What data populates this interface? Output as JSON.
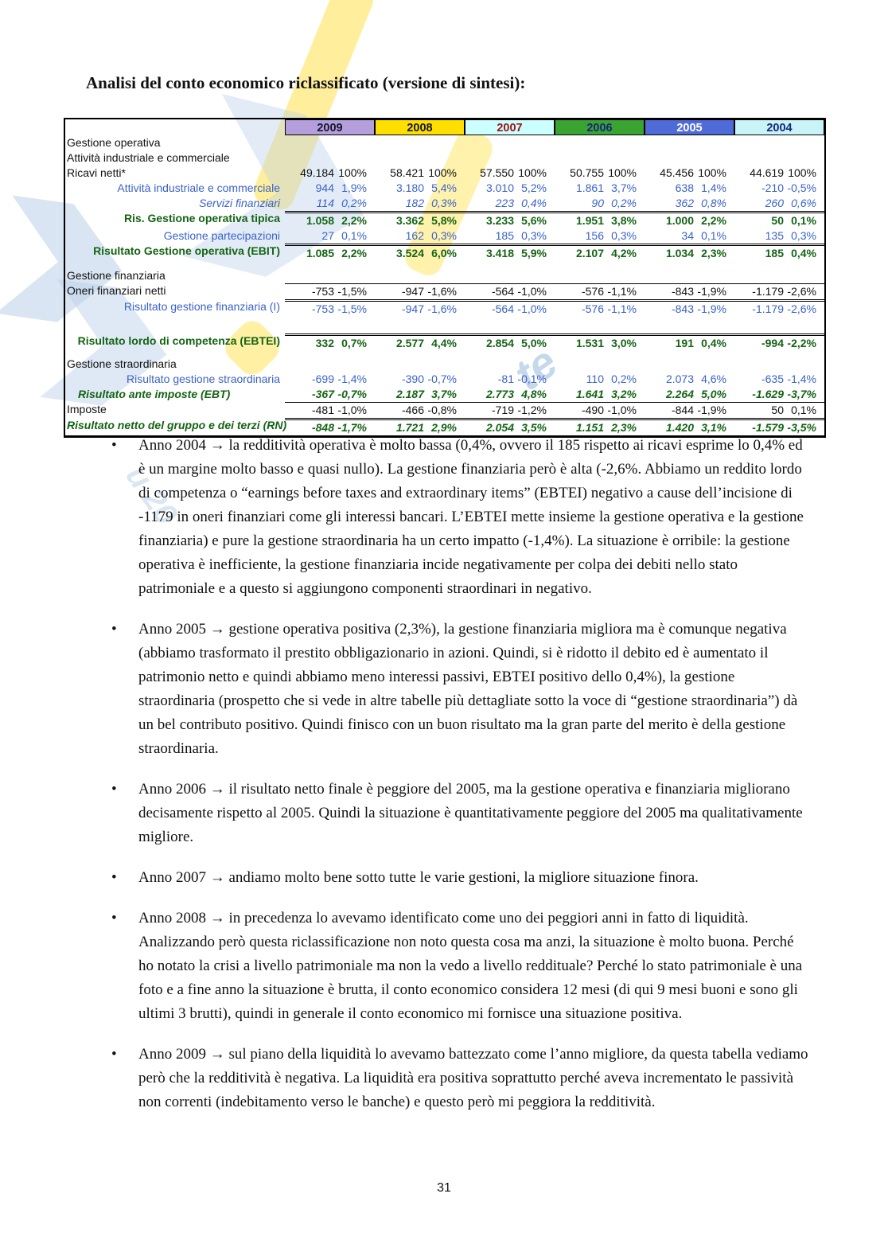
{
  "page": {
    "title": "Analisi del conto economico riclassificato (versione di sintesi):",
    "page_number": "31",
    "bullet_glyph": "•"
  },
  "watermark": {
    "blue": "#b9cfe8",
    "yellow": "#ffe24a",
    "fragments": [
      "te",
      "u 20"
    ]
  },
  "table": {
    "years": [
      {
        "label": "2009",
        "bg": "#b49fdc",
        "fg": "#15152e"
      },
      {
        "label": "2008",
        "bg": "#ffdf00",
        "fg": "#15152e"
      },
      {
        "label": "2007",
        "bg": "#ccffff",
        "fg": "#a01313"
      },
      {
        "label": "2006",
        "bg": "#3aa432",
        "fg": "#16247e"
      },
      {
        "label": "2005",
        "bg": "#4f6bd8",
        "fg": "#ffffff"
      },
      {
        "label": "2004",
        "bg": "#c8f4f8",
        "fg": "#16247e"
      }
    ],
    "rows": [
      {
        "label": "Gestione operativa",
        "style": "section",
        "align": "left",
        "rule": "none",
        "values": []
      },
      {
        "label": "Attività industriale e commerciale",
        "style": "section2",
        "align": "left",
        "rule": "none",
        "values": []
      },
      {
        "label": "Ricavi netti*",
        "style": "plain",
        "align": "left",
        "rule": "none",
        "values": [
          [
            "49.184",
            "100%"
          ],
          [
            "58.421",
            "100%"
          ],
          [
            "57.550",
            "100%"
          ],
          [
            "50.755",
            "100%"
          ],
          [
            "45.456",
            "100%"
          ],
          [
            "44.619",
            "100%"
          ]
        ]
      },
      {
        "label": "Attività industriale e commerciale",
        "style": "blue",
        "align": "right",
        "rule": "none",
        "values": [
          [
            "944",
            "1,9%"
          ],
          [
            "3.180",
            "5,4%"
          ],
          [
            "3.010",
            "5,2%"
          ],
          [
            "1.861",
            "3,7%"
          ],
          [
            "638",
            "1,4%"
          ],
          [
            "-210",
            "-0,5%"
          ]
        ]
      },
      {
        "label": "Servizi finanziari",
        "style": "blue-italic",
        "align": "right",
        "rule": "none",
        "values": [
          [
            "114",
            "0,2%"
          ],
          [
            "182",
            "0,3%"
          ],
          [
            "223",
            "0,4%"
          ],
          [
            "90",
            "0,2%"
          ],
          [
            "362",
            "0,8%"
          ],
          [
            "260",
            "0,6%"
          ]
        ]
      },
      {
        "label": "Ris. Gestione operativa tipica",
        "style": "green",
        "align": "right",
        "rule": "double",
        "values": [
          [
            "1.058",
            "2,2%"
          ],
          [
            "3.362",
            "5,8%"
          ],
          [
            "3.233",
            "5,6%"
          ],
          [
            "1.951",
            "3,8%"
          ],
          [
            "1.000",
            "2,2%"
          ],
          [
            "50",
            "0,1%"
          ]
        ]
      },
      {
        "label": "Gestione partecipazioni",
        "style": "blue",
        "align": "right",
        "rule": "none",
        "values": [
          [
            "27",
            "0,1%"
          ],
          [
            "162",
            "0,3%"
          ],
          [
            "185",
            "0,3%"
          ],
          [
            "156",
            "0,3%"
          ],
          [
            "34",
            "0,1%"
          ],
          [
            "135",
            "0,3%"
          ]
        ]
      },
      {
        "label": "Risultato Gestione operativa (EBIT)",
        "style": "green",
        "align": "right",
        "rule": "double",
        "values": [
          [
            "1.085",
            "2,2%"
          ],
          [
            "3.524",
            "6,0%"
          ],
          [
            "3.418",
            "5,9%"
          ],
          [
            "2.107",
            "4,2%"
          ],
          [
            "1.034",
            "2,3%"
          ],
          [
            "185",
            "0,4%"
          ]
        ]
      },
      {
        "style": "spacer"
      },
      {
        "label": "Gestione finanziaria",
        "style": "section",
        "align": "left",
        "rule": "none",
        "values": []
      },
      {
        "label": "Oneri finanziari netti",
        "style": "plain",
        "align": "left",
        "rule": "single",
        "values": [
          [
            "-753",
            "-1,5%"
          ],
          [
            "-947",
            "-1,6%"
          ],
          [
            "-564",
            "-1,0%"
          ],
          [
            "-576",
            "-1,1%"
          ],
          [
            "-843",
            "-1,9%"
          ],
          [
            "-1.179",
            "-2,6%"
          ]
        ]
      },
      {
        "label": "Risultato gestione finanziaria (I)",
        "style": "blue",
        "align": "right",
        "rule": "double",
        "values": [
          [
            "-753",
            "-1,5%"
          ],
          [
            "-947",
            "-1,6%"
          ],
          [
            "-564",
            "-1,0%"
          ],
          [
            "-576",
            "-1,1%"
          ],
          [
            "-843",
            "-1,9%"
          ],
          [
            "-1.179",
            "-2,6%"
          ]
        ]
      },
      {
        "style": "spacer-lg"
      },
      {
        "label": "Risultato lordo di competenza (EBTEI)",
        "style": "green",
        "align": "right",
        "rule": "double",
        "values": [
          [
            "332",
            "0,7%"
          ],
          [
            "2.577",
            "4,4%"
          ],
          [
            "2.854",
            "5,0%"
          ],
          [
            "1.531",
            "3,0%"
          ],
          [
            "191",
            "0,4%"
          ],
          [
            "-994",
            "-2,2%"
          ]
        ]
      },
      {
        "style": "spacer-sm"
      },
      {
        "label": "Gestione straordinaria",
        "style": "section",
        "align": "left",
        "rule": "none",
        "values": []
      },
      {
        "label": "Risultato gestione straordinaria",
        "style": "blue",
        "align": "right",
        "rule": "none",
        "values": [
          [
            "-699",
            "-1,4%"
          ],
          [
            "-390",
            "-0,7%"
          ],
          [
            "-81",
            "-0,1%"
          ],
          [
            "110",
            "0,2%"
          ],
          [
            "2.073",
            "4,6%"
          ],
          [
            "-635",
            "-1,4%"
          ]
        ]
      },
      {
        "label": "Risultato ante imposte (EBT)",
        "style": "green-italic",
        "align": "left-indent",
        "rule": "none",
        "values": [
          [
            "-367",
            "-0,7%"
          ],
          [
            "2.187",
            "3,7%"
          ],
          [
            "2.773",
            "4,8%"
          ],
          [
            "1.641",
            "3,2%"
          ],
          [
            "2.264",
            "5,0%"
          ],
          [
            "-1.629",
            "-3,7%"
          ]
        ]
      },
      {
        "label": "Imposte",
        "style": "plain",
        "align": "left",
        "rule": "single",
        "values": [
          [
            "-481",
            "-1,0%"
          ],
          [
            "-466",
            "-0,8%"
          ],
          [
            "-719",
            "-1,2%"
          ],
          [
            "-490",
            "-1,0%"
          ],
          [
            "-844",
            "-1,9%"
          ],
          [
            "50",
            "0,1%"
          ]
        ]
      },
      {
        "label": "Risultato netto del gruppo e dei terzi (RN)",
        "style": "green-italic",
        "align": "left",
        "rule": "double",
        "values": [
          [
            "-848",
            "-1,7%"
          ],
          [
            "1.721",
            "2,9%"
          ],
          [
            "2.054",
            "3,5%"
          ],
          [
            "1.151",
            "2,3%"
          ],
          [
            "1.420",
            "3,1%"
          ],
          [
            "-1.579",
            "-3,5%"
          ]
        ]
      }
    ]
  },
  "bullets": [
    "Anno 2004 → la redditività operativa è molto bassa (0,4%, ovvero il 185 rispetto ai ricavi esprime lo 0,4% ed è un margine molto basso e quasi nullo). La gestione finanziaria però è alta (-2,6%. Abbiamo un reddito lordo di competenza o “earnings before taxes and extraordinary items” (EBTEI) negativo a cause dell’incisione di -1179 in oneri finanziari come gli interessi bancari. L’EBTEI mette insieme la gestione operativa e la gestione finanziaria) e pure la gestione straordinaria ha un certo impatto (-1,4%). La situazione è orribile: la gestione operativa è inefficiente, la gestione finanziaria incide negativamente per colpa dei debiti nello stato patrimoniale e a questo si aggiungono componenti straordinari in negativo.",
    "Anno 2005 → gestione operativa positiva (2,3%), la gestione finanziaria migliora ma è comunque negativa (abbiamo trasformato il prestito obbligazionario in azioni. Quindi, si è ridotto il debito ed è aumentato il patrimonio netto e quindi abbiamo meno interessi passivi, EBTEI positivo dello 0,4%), la gestione straordinaria (prospetto che si vede in altre tabelle più dettagliate sotto la voce di “gestione straordinaria”) dà un bel contributo positivo. Quindi finisco con un buon risultato ma la gran parte del merito è della gestione straordinaria.",
    "Anno 2006 → il risultato netto finale è peggiore del 2005, ma la gestione operativa e finanziaria migliorano decisamente rispetto al 2005. Quindi la situazione è quantitativamente peggiore del 2005 ma qualitativamente migliore.",
    "Anno 2007 → andiamo molto bene sotto tutte le varie gestioni, la migliore situazione finora.",
    "Anno 2008 → in precedenza lo avevamo identificato come uno dei peggiori anni in fatto di liquidità. Analizzando però questa riclassificazione non noto questa cosa ma anzi, la situazione è molto buona. Perché ho notato la crisi a livello patrimoniale ma non la vedo a livello reddituale? Perché lo stato patrimoniale è una foto e a fine anno la situazione è brutta, il conto economico considera 12 mesi (di qui 9 mesi buoni e sono gli ultimi 3 brutti), quindi in generale il conto economico mi fornisce una situazione positiva.",
    "Anno 2009 → sul piano della liquidità lo avevamo battezzato come l’anno migliore, da questa tabella vediamo però che la redditività è negativa. La liquidità era positiva soprattutto perché aveva incrementato le passività non correnti (indebitamento verso le banche) e questo però mi peggiora la redditività."
  ]
}
